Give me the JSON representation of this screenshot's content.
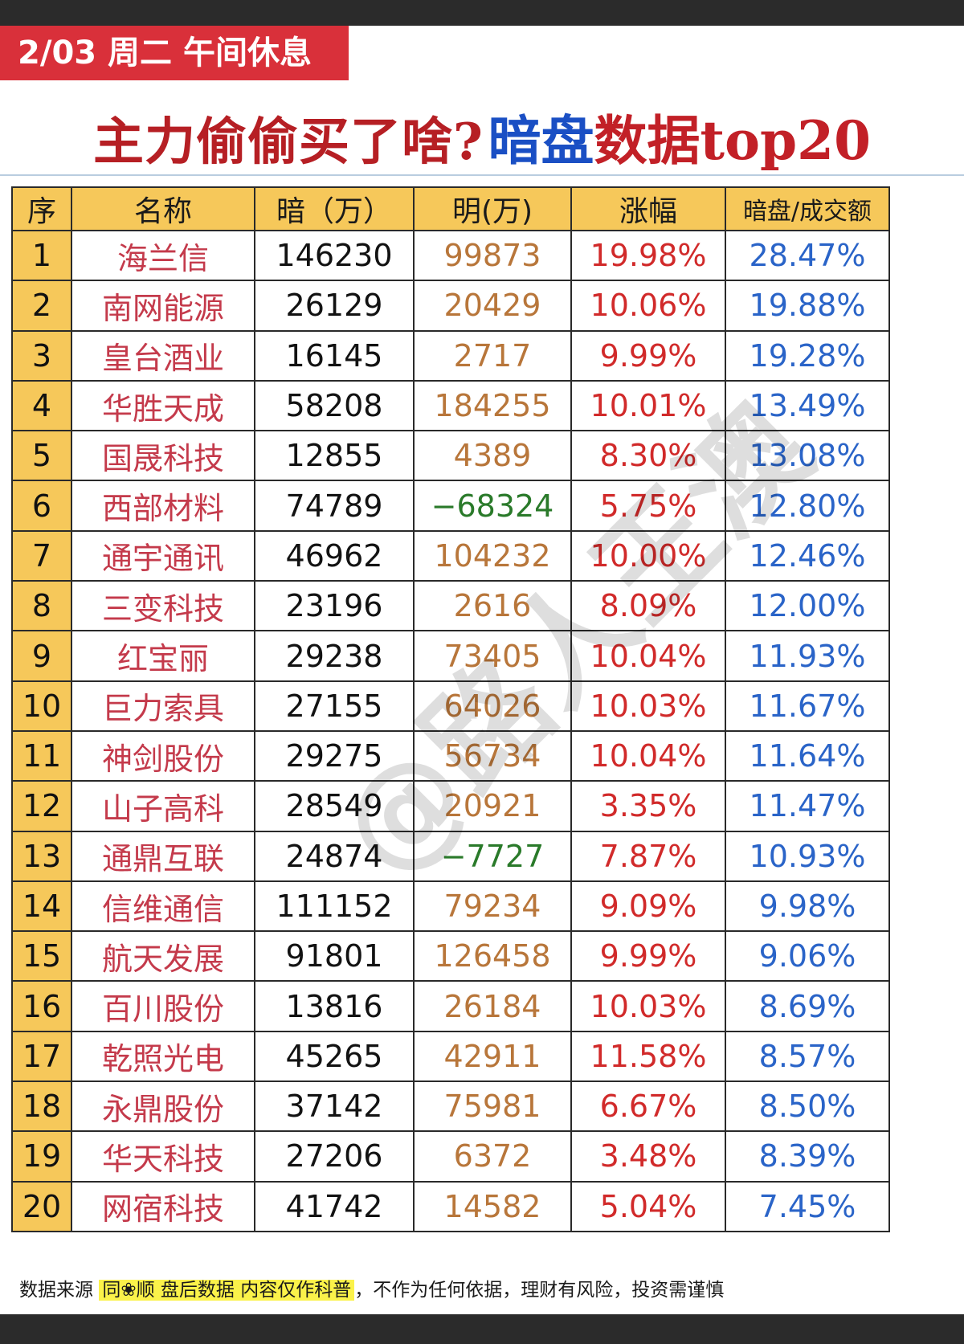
{
  "header": {
    "date_tag": "2/03 周二  午间休息",
    "title_part1": "主力偷偷买了啥?",
    "title_part2": "暗盘",
    "title_part3": "数据top20"
  },
  "table": {
    "columns": [
      "序",
      "名称",
      "暗（万）",
      "明(万)",
      "涨幅",
      "暗盘/成交额"
    ],
    "rows": [
      {
        "idx": "1",
        "name": "海兰信",
        "dark": "146230",
        "ming": "99873",
        "pct": "19.98%",
        "ratio": "28.47%"
      },
      {
        "idx": "2",
        "name": "南网能源",
        "dark": "26129",
        "ming": "20429",
        "pct": "10.06%",
        "ratio": "19.88%"
      },
      {
        "idx": "3",
        "name": "皇台酒业",
        "dark": "16145",
        "ming": "2717",
        "pct": "9.99%",
        "ratio": "19.28%"
      },
      {
        "idx": "4",
        "name": "华胜天成",
        "dark": "58208",
        "ming": "184255",
        "pct": "10.01%",
        "ratio": "13.49%"
      },
      {
        "idx": "5",
        "name": "国晟科技",
        "dark": "12855",
        "ming": "4389",
        "pct": "8.30%",
        "ratio": "13.08%"
      },
      {
        "idx": "6",
        "name": "西部材料",
        "dark": "74789",
        "ming": "−68324",
        "pct": "5.75%",
        "ratio": "12.80%"
      },
      {
        "idx": "7",
        "name": "通宇通讯",
        "dark": "46962",
        "ming": "104232",
        "pct": "10.00%",
        "ratio": "12.46%"
      },
      {
        "idx": "8",
        "name": "三变科技",
        "dark": "23196",
        "ming": "2616",
        "pct": "8.09%",
        "ratio": "12.00%"
      },
      {
        "idx": "9",
        "name": "红宝丽",
        "dark": "29238",
        "ming": "73405",
        "pct": "10.04%",
        "ratio": "11.93%"
      },
      {
        "idx": "10",
        "name": "巨力索具",
        "dark": "27155",
        "ming": "64026",
        "pct": "10.03%",
        "ratio": "11.67%"
      },
      {
        "idx": "11",
        "name": "神剑股份",
        "dark": "29275",
        "ming": "56734",
        "pct": "10.04%",
        "ratio": "11.64%"
      },
      {
        "idx": "12",
        "name": "山子高科",
        "dark": "28549",
        "ming": "20921",
        "pct": "3.35%",
        "ratio": "11.47%"
      },
      {
        "idx": "13",
        "name": "通鼎互联",
        "dark": "24874",
        "ming": "−7727",
        "pct": "7.87%",
        "ratio": "10.93%"
      },
      {
        "idx": "14",
        "name": "信维通信",
        "dark": "111152",
        "ming": "79234",
        "pct": "9.09%",
        "ratio": "9.98%"
      },
      {
        "idx": "15",
        "name": "航天发展",
        "dark": "91801",
        "ming": "126458",
        "pct": "9.99%",
        "ratio": "9.06%"
      },
      {
        "idx": "16",
        "name": "百川股份",
        "dark": "13816",
        "ming": "26184",
        "pct": "10.03%",
        "ratio": "8.69%"
      },
      {
        "idx": "17",
        "name": "乾照光电",
        "dark": "45265",
        "ming": "42911",
        "pct": "11.58%",
        "ratio": "8.57%"
      },
      {
        "idx": "18",
        "name": "永鼎股份",
        "dark": "37142",
        "ming": "75981",
        "pct": "6.67%",
        "ratio": "8.50%"
      },
      {
        "idx": "19",
        "name": "华天科技",
        "dark": "27206",
        "ming": "6372",
        "pct": "3.48%",
        "ratio": "8.39%"
      },
      {
        "idx": "20",
        "name": "网宿科技",
        "dark": "41742",
        "ming": "14582",
        "pct": "5.04%",
        "ratio": "7.45%"
      }
    ]
  },
  "watermark": "@路人王澳",
  "footer": {
    "part1": "数据来源 ",
    "highlight1": "同❀顺  盘后数据  内容仅作科普",
    "part2": "，不作为任何依据，理财有风险，投资需谨慎"
  },
  "colors": {
    "tag_red": "#d9303a",
    "title_red": "#b61f24",
    "title_blue": "#1a4fc4",
    "header_yellow": "#f6c85a",
    "name_red": "#c43a4b",
    "ming_brown": "#b8763a",
    "ming_negative_green": "#2a7a2a",
    "pct_red": "#d12a2a",
    "ratio_blue": "#2a64c8",
    "footer_highlight": "#fbf24a"
  }
}
